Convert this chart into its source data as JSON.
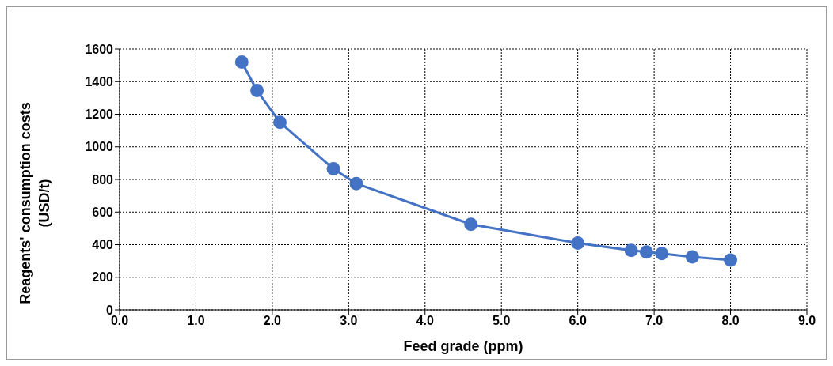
{
  "chart_data": {
    "type": "line",
    "xlabel": "Feed grade (ppm)",
    "ylabel": "Reagents' consumption costs\n(USD/t)",
    "x": [
      1.6,
      1.8,
      2.1,
      2.8,
      3.1,
      4.6,
      6.0,
      6.7,
      6.9,
      7.1,
      7.5,
      8.0
    ],
    "series": [
      {
        "color": "#4472c4",
        "values": [
          1520,
          1345,
          1150,
          865,
          775,
          525,
          410,
          365,
          355,
          345,
          325,
          305
        ]
      }
    ],
    "xlim": [
      0,
      9
    ],
    "ylim": [
      0,
      1600
    ],
    "xticks": [
      {
        "value": 0,
        "label": "0.0"
      },
      {
        "value": 1,
        "label": "1.0"
      },
      {
        "value": 2,
        "label": "2.0"
      },
      {
        "value": 3,
        "label": "3.0"
      },
      {
        "value": 4,
        "label": "4.0"
      },
      {
        "value": 5,
        "label": "5.0"
      },
      {
        "value": 6,
        "label": "6.0"
      },
      {
        "value": 7,
        "label": "7.0"
      },
      {
        "value": 8,
        "label": "8.0"
      },
      {
        "value": 9,
        "label": "9.0"
      }
    ],
    "yticks": [
      0,
      200,
      400,
      600,
      800,
      1000,
      1200,
      1400,
      1600
    ],
    "grid": true,
    "marker": "circle",
    "line_style": "solid"
  }
}
